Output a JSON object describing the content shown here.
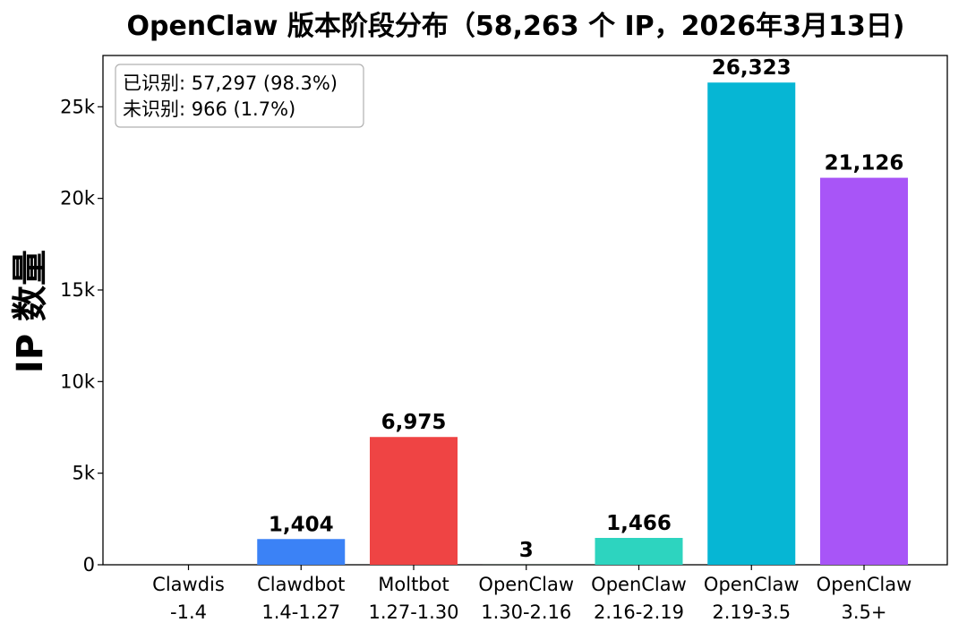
{
  "chart_data": {
    "type": "bar",
    "title": "OpenClaw 版本阶段分布（58,263 个 IP，2026年3月13日)",
    "ylabel": "IP 数量",
    "xlabel": "",
    "ylim": [
      0,
      27800
    ],
    "yticks": [
      0,
      5000,
      10000,
      15000,
      20000,
      25000
    ],
    "ytick_labels": [
      "0",
      "5k",
      "10k",
      "15k",
      "20k",
      "25k"
    ],
    "grid": false,
    "categories": [
      [
        "Clawdis",
        "-1.4"
      ],
      [
        "Clawdbot",
        "1.4-1.27"
      ],
      [
        "Moltbot",
        "1.27-1.30"
      ],
      [
        "OpenClaw",
        "1.30-2.16"
      ],
      [
        "OpenClaw",
        "2.16-2.19"
      ],
      [
        "OpenClaw",
        "2.19-3.5"
      ],
      [
        "OpenClaw",
        "3.5+"
      ]
    ],
    "values": [
      0,
      1404,
      6975,
      3,
      1466,
      26323,
      21126
    ],
    "value_labels": [
      "",
      "1,404",
      "6,975",
      "3",
      "1,466",
      "26,323",
      "21,126"
    ],
    "colors": [
      "#3b82f6",
      "#3b82f6",
      "#ef4444",
      "#22c55e",
      "#2dd4bf",
      "#06b6d4",
      "#a855f7"
    ],
    "annotation": {
      "position": "top-left",
      "lines": [
        "已识别: 57,297 (98.3%)",
        "未识别: 966 (1.7%)"
      ]
    }
  }
}
